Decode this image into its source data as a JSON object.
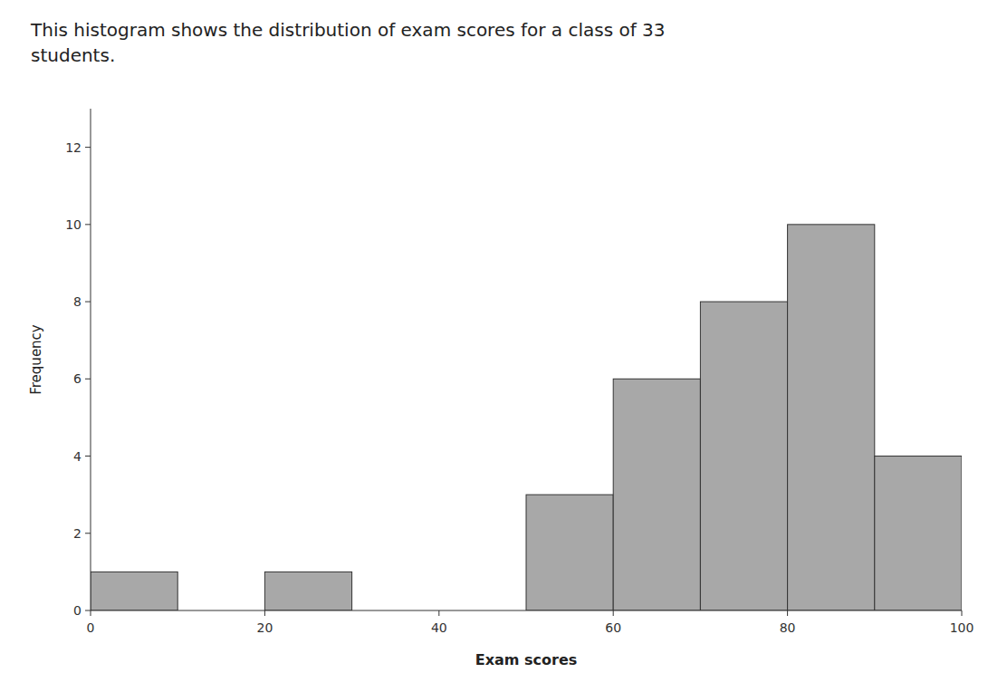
{
  "chart_data": {
    "type": "histogram",
    "title": "This histogram shows the distribution of exam scores for a class of 33\nstudents.",
    "xlabel": "Exam scores",
    "ylabel": "Frequency",
    "bins": [
      0,
      10,
      20,
      30,
      40,
      50,
      60,
      70,
      80,
      90,
      100
    ],
    "values": [
      1,
      0,
      1,
      0,
      0,
      3,
      6,
      8,
      10,
      4
    ],
    "color": "#a8a8a8",
    "xlim": [
      0,
      100
    ],
    "ylim": [
      0,
      13
    ],
    "xticks": [
      0,
      20,
      40,
      60,
      80,
      100
    ],
    "yticks": [
      0,
      2,
      4,
      6,
      8,
      10,
      12
    ],
    "grid": false
  }
}
